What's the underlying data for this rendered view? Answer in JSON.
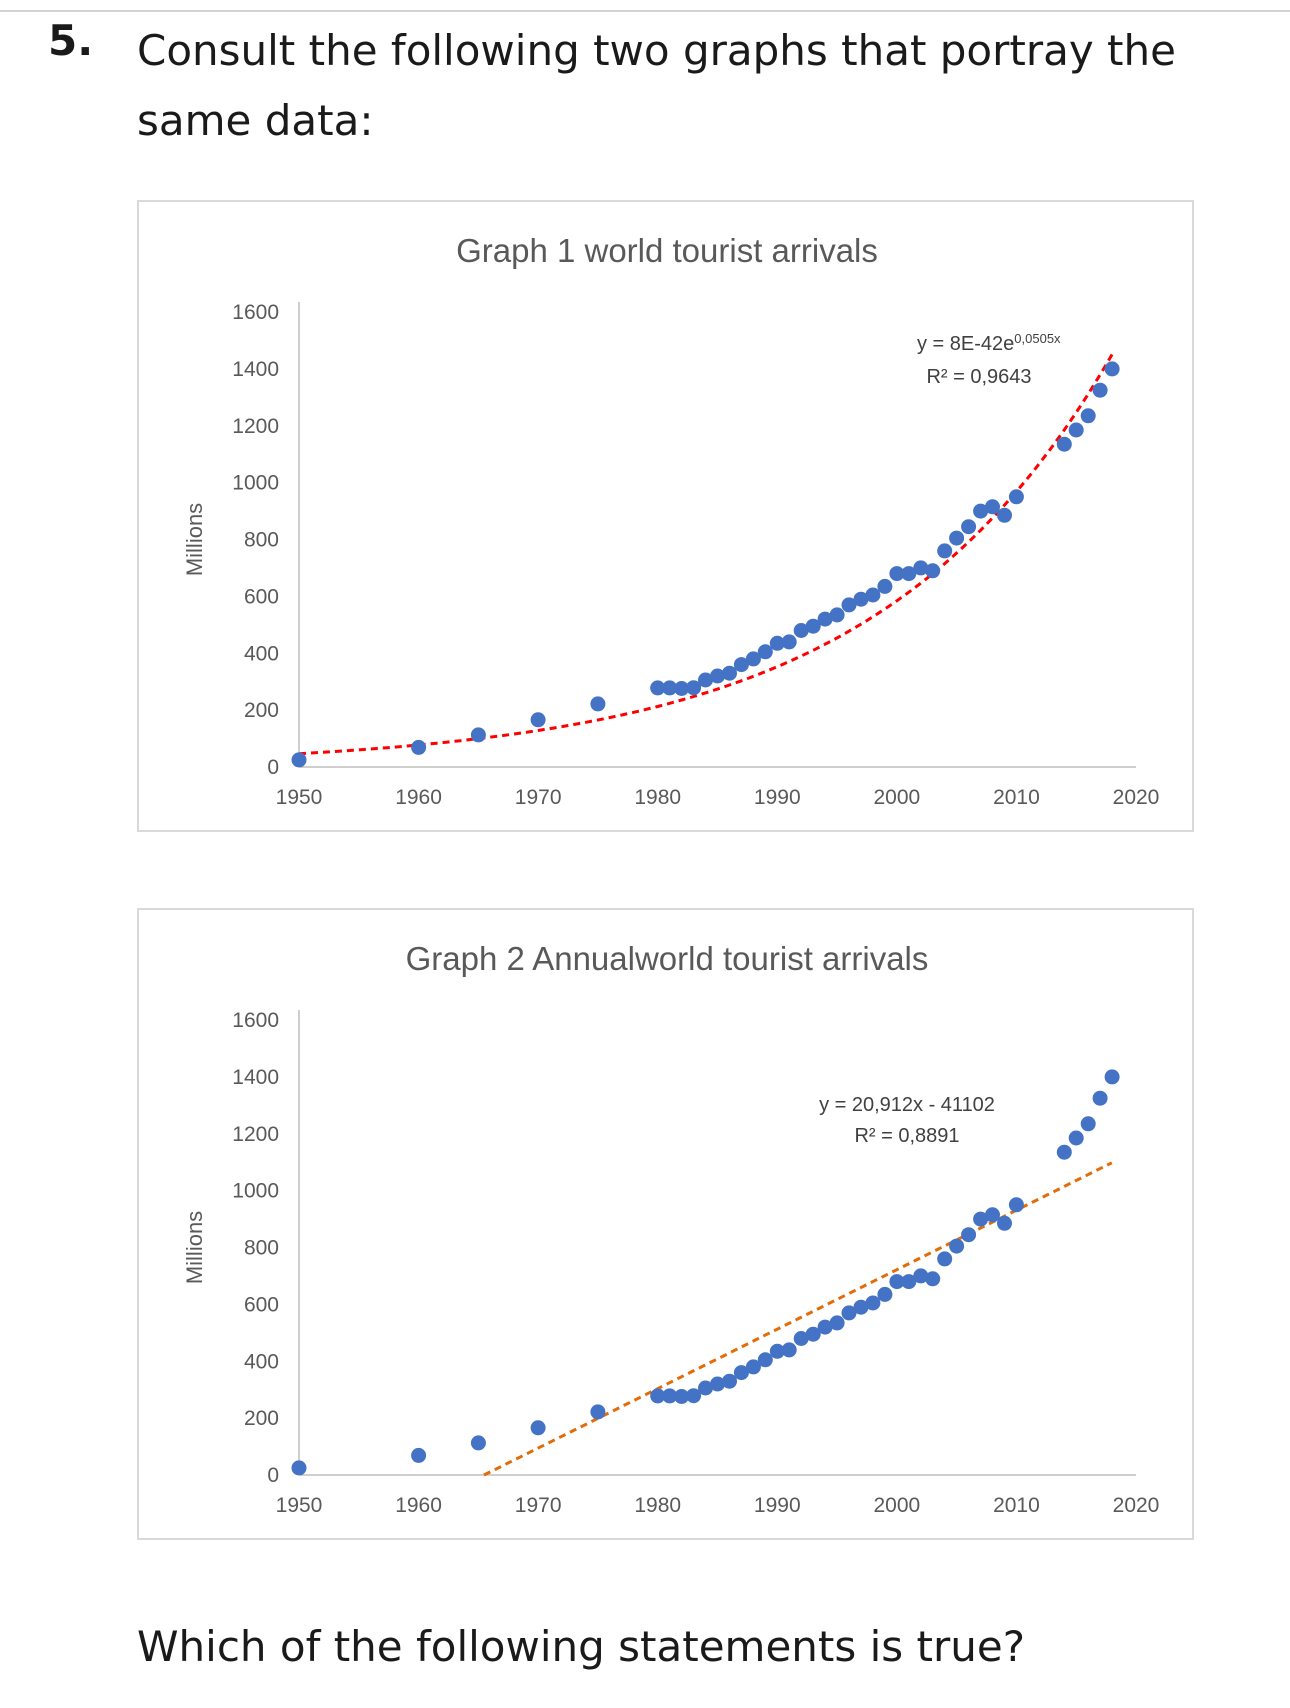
{
  "question": {
    "number": "5.",
    "intro": "Consult the following two graphs that portray the same data:",
    "prompt": "Which of the following statements is true?"
  },
  "chart_data": [
    {
      "type": "scatter",
      "title": "Graph 1 world tourist arrivals",
      "xlabel": "",
      "ylabel": "Millions",
      "xlim": [
        1950,
        2020
      ],
      "ylim": [
        0,
        1600
      ],
      "x_ticks": [
        "1950",
        "1960",
        "1970",
        "1980",
        "1990",
        "2000",
        "2010",
        "2020"
      ],
      "y_ticks": [
        "0",
        "200",
        "400",
        "600",
        "800",
        "1000",
        "1200",
        "1400",
        "1600"
      ],
      "grid": false,
      "legend": "none",
      "points_color": "#4472c4",
      "trendline": {
        "type": "exponential",
        "color": "#ff0000",
        "equation_lead": "y = 8E-42e",
        "equation_exp": "0,0505x",
        "r2": "R² = 0,9643",
        "a": 8e-42,
        "b": 0.0505
      },
      "x": [
        1950,
        1960,
        1965,
        1970,
        1975,
        1980,
        1981,
        1982,
        1983,
        1984,
        1985,
        1986,
        1987,
        1988,
        1989,
        1990,
        1991,
        1992,
        1993,
        1994,
        1995,
        1996,
        1997,
        1998,
        1999,
        2000,
        2001,
        2002,
        2003,
        2004,
        2005,
        2006,
        2007,
        2008,
        2009,
        2010,
        2014,
        2015,
        2016,
        2017,
        2018
      ],
      "y": [
        25,
        69,
        113,
        166,
        222,
        278,
        278,
        276,
        279,
        306,
        320,
        330,
        360,
        380,
        405,
        435,
        440,
        480,
        495,
        520,
        535,
        570,
        590,
        605,
        635,
        680,
        680,
        700,
        690,
        760,
        805,
        845,
        900,
        915,
        885,
        950,
        1135,
        1185,
        1235,
        1325,
        1400
      ]
    },
    {
      "type": "scatter",
      "title": "Graph 2 Annualworld tourist arrivals",
      "xlabel": "",
      "ylabel": "Millions",
      "xlim": [
        1950,
        2020
      ],
      "ylim": [
        0,
        1600
      ],
      "x_ticks": [
        "1950",
        "1960",
        "1970",
        "1980",
        "1990",
        "2000",
        "2010",
        "2020"
      ],
      "y_ticks": [
        "0",
        "200",
        "400",
        "600",
        "800",
        "1000",
        "1200",
        "1400",
        "1600"
      ],
      "grid": false,
      "legend": "none",
      "points_color": "#4472c4",
      "trendline": {
        "type": "linear",
        "color": "#e36c09",
        "equation": "y = 20,912x - 41102",
        "r2": "R² = 0,8891",
        "slope": 20.912,
        "intercept": -41102
      },
      "x": [
        1950,
        1960,
        1965,
        1970,
        1975,
        1980,
        1981,
        1982,
        1983,
        1984,
        1985,
        1986,
        1987,
        1988,
        1989,
        1990,
        1991,
        1992,
        1993,
        1994,
        1995,
        1996,
        1997,
        1998,
        1999,
        2000,
        2001,
        2002,
        2003,
        2004,
        2005,
        2006,
        2007,
        2008,
        2009,
        2010,
        2014,
        2015,
        2016,
        2017,
        2018
      ],
      "y": [
        25,
        69,
        113,
        166,
        222,
        278,
        278,
        276,
        279,
        306,
        320,
        330,
        360,
        380,
        405,
        435,
        440,
        480,
        495,
        520,
        535,
        570,
        590,
        605,
        635,
        680,
        680,
        700,
        690,
        760,
        805,
        845,
        900,
        915,
        885,
        950,
        1135,
        1185,
        1235,
        1325,
        1400
      ]
    }
  ]
}
